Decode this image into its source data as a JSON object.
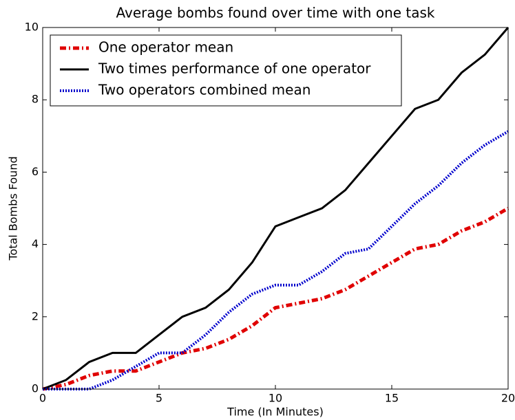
{
  "chart_data": {
    "type": "line",
    "title": "Average bombs found over time with one task",
    "xlabel": "Time (In Minutes)",
    "ylabel": "Total Bombs Found",
    "x": [
      0,
      1,
      2,
      3,
      4,
      5,
      6,
      7,
      8,
      9,
      10,
      11,
      12,
      13,
      14,
      15,
      16,
      17,
      18,
      19,
      20
    ],
    "series": [
      {
        "name": "One operator mean",
        "color": "#e00000",
        "style": "dashdot",
        "values": [
          0,
          0.125,
          0.375,
          0.5,
          0.5,
          0.75,
          1,
          1.125,
          1.375,
          1.75,
          2.25,
          2.375,
          2.5,
          2.75,
          3.125,
          3.5,
          3.875,
          4,
          4.375,
          4.625,
          5
        ]
      },
      {
        "name": "Two times performance of one operator",
        "color": "#000000",
        "style": "solid",
        "values": [
          0,
          0.25,
          0.75,
          1,
          1,
          1.5,
          2,
          2.25,
          2.75,
          3.5,
          4.5,
          4.75,
          5,
          5.5,
          6.25,
          7,
          7.75,
          8,
          8.75,
          9.25,
          10
        ]
      },
      {
        "name": "Two operators combined mean",
        "color": "#0000cc",
        "style": "dotted",
        "values": [
          0,
          0,
          0,
          0.25,
          0.625,
          1,
          1,
          1.5,
          2.125,
          2.625,
          2.875,
          2.875,
          3.25,
          3.75,
          3.875,
          4.5,
          5.125,
          5.625,
          6.25,
          6.75,
          7.125
        ]
      }
    ],
    "xlim": [
      0,
      20
    ],
    "xticks": [
      0,
      5,
      10,
      15,
      20
    ],
    "ylim": [
      0,
      10
    ],
    "yticks": [
      0,
      2,
      4,
      6,
      8,
      10
    ],
    "legend": "upper left",
    "grid": false
  }
}
